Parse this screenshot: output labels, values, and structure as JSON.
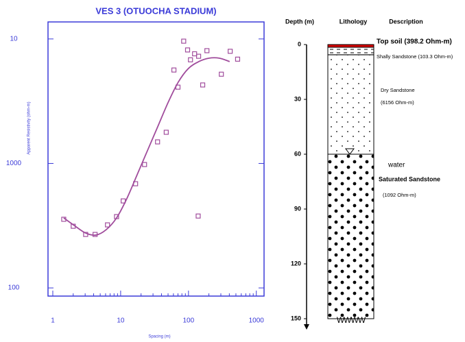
{
  "chart_data": [
    {
      "type": "scatter",
      "title": "VES 3 (OTUOCHA STADIUM)",
      "x_label": "Spacing (m)",
      "y_label": "Apparent Resistivity (ohm-m)",
      "log_x": true,
      "log_y": true,
      "xlim": [
        0.85,
        1300
      ],
      "ylim": [
        86,
        13700
      ],
      "xticks": [
        1,
        10,
        100,
        1000
      ],
      "yticks": [
        100,
        1000,
        {
          "value": 10000,
          "label": "10"
        }
      ],
      "axis_color": "#3a3ad8",
      "series": [
        {
          "kind": "points",
          "color": "#a04c9c",
          "x": [
            1.45,
            2.0,
            3.05,
            4.2,
            6.4,
            8.7,
            10.9,
            16.6,
            22.5,
            35,
            47,
            61,
            70,
            85,
            97,
            107,
            123,
            139,
            141,
            162,
            187,
            305,
            412,
            530
          ],
          "values": [
            356,
            313,
            269,
            269,
            321,
            374,
            500,
            687,
            980,
            1490,
            1780,
            5630,
            4100,
            9600,
            8160,
            6800,
            7600,
            378,
            7260,
            4270,
            8050,
            5210,
            7960,
            6880
          ]
        },
        {
          "kind": "line",
          "color": "#a04c9c",
          "x": [
            1.45,
            2.15,
            3.05,
            4.33,
            6.13,
            8.7,
            12.3,
            17.5,
            24.8,
            35.2,
            49.9,
            70.7,
            100,
            142,
            201,
            285,
            404
          ],
          "values": [
            365,
            313,
            276,
            266,
            294,
            365,
            520,
            811,
            1265,
            1972,
            3076,
            4500,
            5800,
            6580,
            7010,
            7010,
            6580
          ]
        }
      ]
    },
    {
      "type": "lithology",
      "headers": [
        "Depth (m)",
        "Lithology",
        "Description"
      ],
      "ylim": [
        0,
        150
      ],
      "yticks": [
        0,
        30,
        60,
        90,
        120,
        150
      ],
      "layers": [
        {
          "top": 0,
          "bottom": 1.5,
          "pattern": "red",
          "lines": [
            "Top soil (398.2 Ohm-m)"
          ]
        },
        {
          "top": 1.5,
          "bottom": 5.6,
          "pattern": "dash",
          "lines": [
            "Shally Sandstone (103.3 Ohm-m)"
          ]
        },
        {
          "top": 5.6,
          "bottom": 60,
          "pattern": "small",
          "lines": [
            "Dry Sandstone",
            "(6156 Ohm-m)"
          ]
        },
        {
          "top": 60,
          "bottom": 150,
          "pattern": "big",
          "lines": [
            "Saturated Sandstone",
            "(1092 Ohm-m)"
          ]
        }
      ],
      "water_table": 60,
      "water_label": "water",
      "bottom_label": "WWWW"
    }
  ]
}
